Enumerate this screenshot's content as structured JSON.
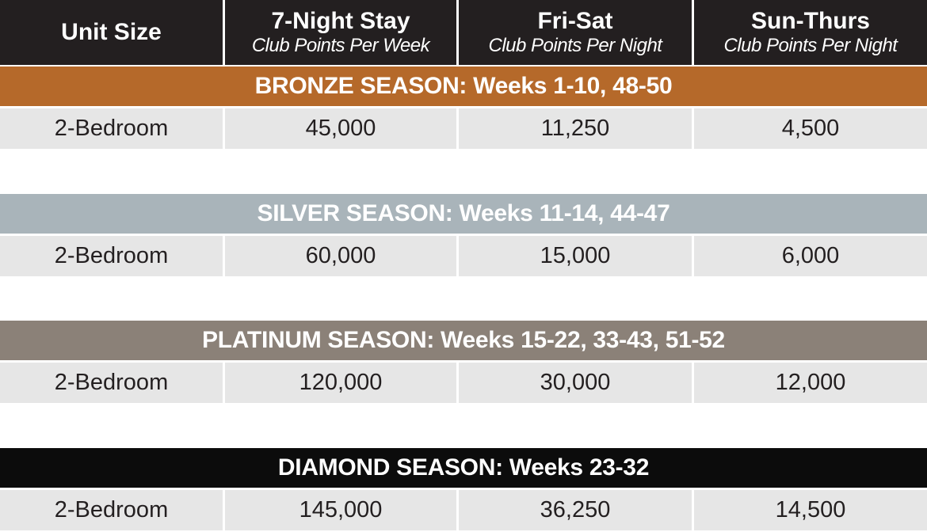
{
  "header": [
    {
      "title": "Unit Size",
      "sub": ""
    },
    {
      "title": "7-Night Stay",
      "sub": "Club Points Per Week"
    },
    {
      "title": "Fri-Sat",
      "sub": "Club Points Per Night"
    },
    {
      "title": "Sun-Thurs",
      "sub": "Club Points Per Night"
    }
  ],
  "seasons": [
    {
      "label": "BRONZE SEASON: Weeks 1-10, 48-50",
      "color": "#b5692a",
      "row": [
        "2-Bedroom",
        "45,000",
        "11,250",
        "4,500"
      ]
    },
    {
      "label": "SILVER SEASON: Weeks 11-14, 44-47",
      "color": "#a9b4ba",
      "row": [
        "2-Bedroom",
        "60,000",
        "15,000",
        "6,000"
      ]
    },
    {
      "label": "PLATINUM SEASON: Weeks 15-22, 33-43, 51-52",
      "color": "#8b8178",
      "row": [
        "2-Bedroom",
        "120,000",
        "30,000",
        "12,000"
      ]
    },
    {
      "label": "DIAMOND SEASON: Weeks 23-32",
      "color": "#0c0c0c",
      "row": [
        "2-Bedroom",
        "145,000",
        "36,250",
        "14,500"
      ]
    }
  ]
}
